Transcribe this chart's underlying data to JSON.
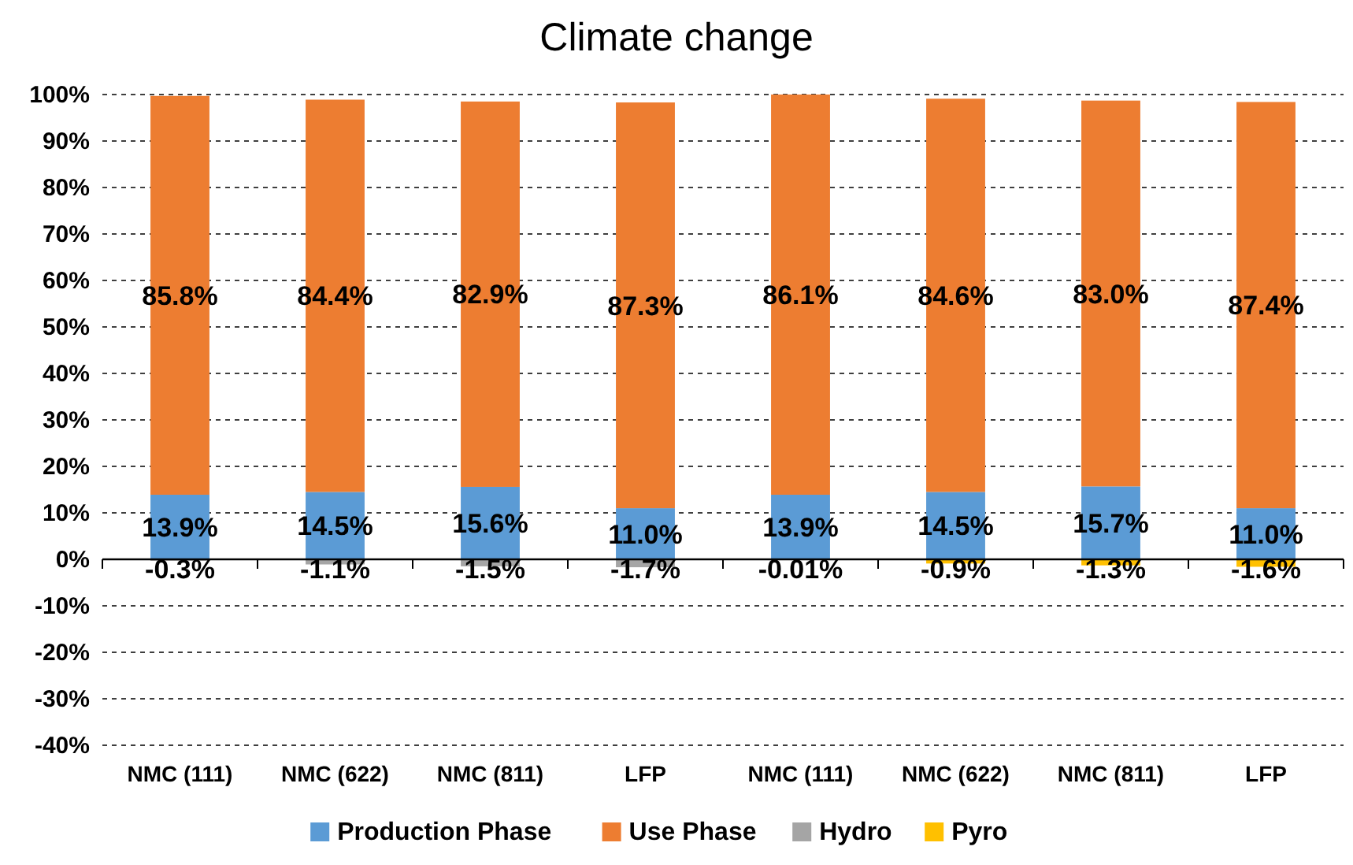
{
  "chart_data": {
    "type": "bar",
    "title": "Climate change",
    "stacked": true,
    "categories": [
      "NMC (111)",
      "NMC (622)",
      "NMC (811)",
      "LFP",
      "NMC (111)",
      "NMC (622)",
      "NMC (811)",
      "LFP"
    ],
    "series": [
      {
        "name": "Production Phase",
        "color": "#5b9bd5",
        "values": [
          13.9,
          14.5,
          15.6,
          11.0,
          13.9,
          14.5,
          15.7,
          11.0
        ],
        "value_labels": [
          "13.9%",
          "14.5%",
          "15.6%",
          "11.0%",
          "13.9%",
          "14.5%",
          "15.7%",
          "11.0%"
        ]
      },
      {
        "name": "Use Phase",
        "color": "#ed7d31",
        "values": [
          85.8,
          84.4,
          82.9,
          87.3,
          86.1,
          84.6,
          83.0,
          87.4
        ],
        "value_labels": [
          "85.8%",
          "84.4%",
          "82.9%",
          "87.3%",
          "86.1%",
          "84.6%",
          "83.0%",
          "87.4%"
        ]
      },
      {
        "name": "Hydro",
        "color": "#a5a5a5",
        "values": [
          -0.3,
          -1.1,
          -1.5,
          -1.7,
          null,
          null,
          null,
          null
        ],
        "value_labels": [
          "-0.3%",
          "-1.1%",
          "-1.5%",
          "-1.7%",
          null,
          null,
          null,
          null
        ]
      },
      {
        "name": "Pyro",
        "color": "#ffc000",
        "values": [
          null,
          null,
          null,
          null,
          -0.01,
          -0.9,
          -1.3,
          -1.6
        ],
        "value_labels": [
          null,
          null,
          null,
          null,
          "-0.01%",
          "-0.9%",
          "-1.3%",
          "-1.6%"
        ]
      }
    ],
    "ylim": [
      -40,
      100
    ],
    "yticks": [
      {
        "value": -40,
        "label": "-40%"
      },
      {
        "value": -30,
        "label": "-30%"
      },
      {
        "value": -20,
        "label": "-20%"
      },
      {
        "value": -10,
        "label": "-10%"
      },
      {
        "value": 0,
        "label": "0%"
      },
      {
        "value": 10,
        "label": "10%"
      },
      {
        "value": 20,
        "label": "20%"
      },
      {
        "value": 30,
        "label": "30%"
      },
      {
        "value": 40,
        "label": "40%"
      },
      {
        "value": 50,
        "label": "50%"
      },
      {
        "value": 60,
        "label": "60%"
      },
      {
        "value": 70,
        "label": "70%"
      },
      {
        "value": 80,
        "label": "80%"
      },
      {
        "value": 90,
        "label": "90%"
      },
      {
        "value": 100,
        "label": "100%"
      }
    ],
    "grid": "y",
    "legend": "bottom"
  }
}
